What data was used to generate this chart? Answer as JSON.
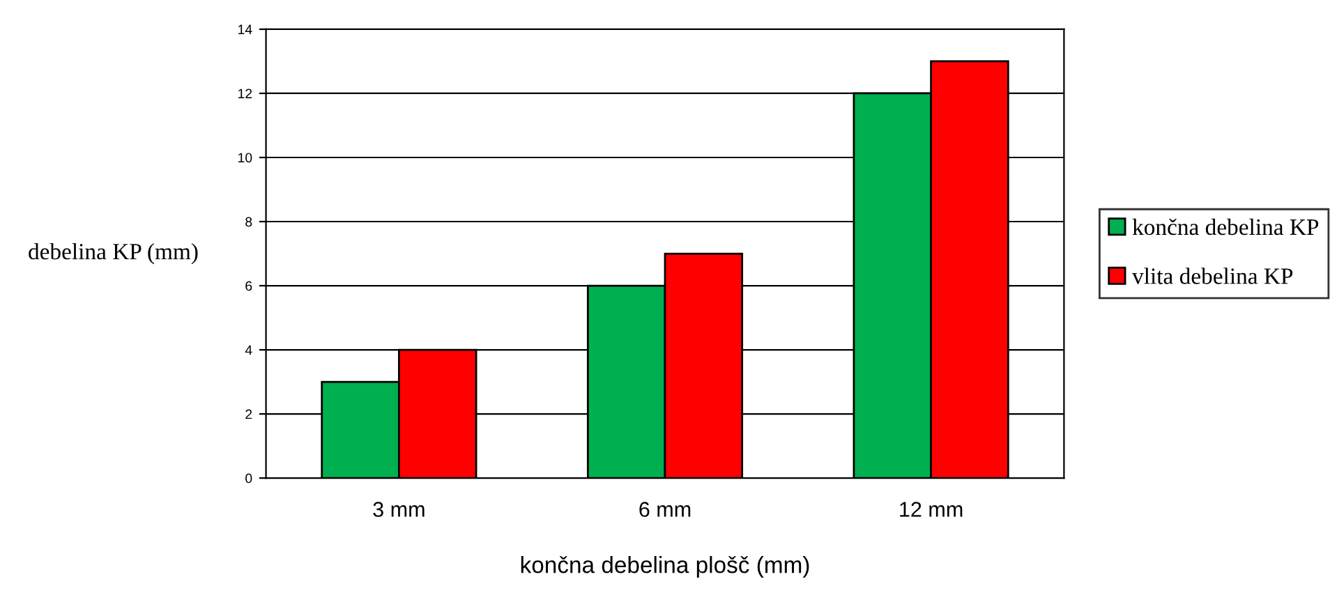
{
  "chart_data": {
    "type": "bar",
    "xlabel": "končna debelina plošč (mm)",
    "ylabel": "debelina KP (mm)",
    "categories": [
      "3 mm",
      "6 mm",
      "12 mm"
    ],
    "series": [
      {
        "name": "končna debelina KP",
        "color": "#00b050",
        "values": [
          3,
          6,
          12
        ]
      },
      {
        "name": "vlita debelina KP",
        "color": "#ff0000",
        "values": [
          4,
          7,
          13
        ]
      }
    ],
    "ylim": [
      0,
      14
    ],
    "yticks": [
      0,
      2,
      4,
      6,
      8,
      10,
      12,
      14
    ],
    "grid": "y",
    "legend": "right"
  }
}
